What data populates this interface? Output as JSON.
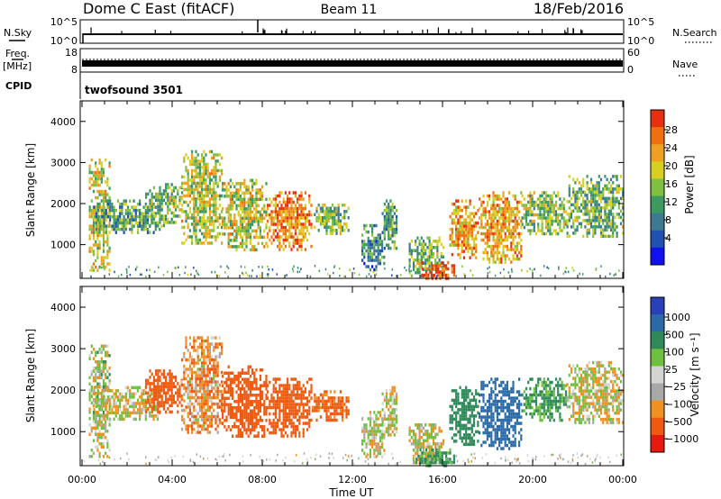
{
  "header": {
    "station": "Dome C East (fitACF)",
    "beam": "Beam 11",
    "date": "18/Feb/2016"
  },
  "noise_panel": {
    "left_label": "N.Sky",
    "left_ticks": [
      "10^5",
      "10^0"
    ],
    "right_label": "N.Search",
    "right_ticks": [
      "10^5",
      "10^0"
    ]
  },
  "freq_panel": {
    "left_label_1": "Freq.",
    "left_label_2": "[MHz]",
    "left_ticks": [
      "18",
      "8"
    ],
    "right_label": "Nave",
    "right_ticks": [
      "60",
      "0"
    ]
  },
  "cpid_panel": {
    "label": "CPID",
    "program": "twofsound 3501"
  },
  "colors": {
    "power": [
      "#1010f0",
      "#2050b0",
      "#3c7a90",
      "#3c9a60",
      "#80c040",
      "#d8d020",
      "#f0a020",
      "#f07010",
      "#e83010"
    ],
    "velocity": [
      "#e81a10",
      "#f05a10",
      "#f09020",
      "#a8a8a8",
      "#d4d4d0",
      "#70c040",
      "#2f8a5a",
      "#2a6aa8",
      "#2840b8"
    ]
  },
  "chart_data": [
    {
      "type": "heatmap",
      "name": "power",
      "ylabel": "Slant Range [km]",
      "yticks": [
        "1000",
        "2000",
        "3000",
        "4000"
      ],
      "ylim": [
        180,
        4500
      ],
      "xlim": [
        "00:00",
        "24:00"
      ],
      "colorbar": {
        "label": "Power [dB]",
        "ticks": [
          "4",
          "8",
          "12",
          "16",
          "20",
          "24",
          "28"
        ],
        "range": [
          0,
          30
        ]
      },
      "blobs": [
        {
          "t": [
            0.3,
            1.2
          ],
          "r": [
            400,
            3100
          ],
          "v": 18
        },
        {
          "t": [
            0.5,
            3.5
          ],
          "r": [
            1300,
            2100
          ],
          "v": 12
        },
        {
          "t": [
            2.8,
            4.4
          ],
          "r": [
            1500,
            2500
          ],
          "v": 15
        },
        {
          "t": [
            4.4,
            6.2
          ],
          "r": [
            1000,
            3300
          ],
          "v": 17
        },
        {
          "t": [
            6.2,
            8.2
          ],
          "r": [
            900,
            2600
          ],
          "v": 18
        },
        {
          "t": [
            8.2,
            10.2
          ],
          "r": [
            900,
            2300
          ],
          "v": 24
        },
        {
          "t": [
            10.2,
            11.8
          ],
          "r": [
            1300,
            2000
          ],
          "v": 14
        },
        {
          "t": [
            12.4,
            13.4
          ],
          "r": [
            400,
            1500
          ],
          "v": 10
        },
        {
          "t": [
            13.3,
            14.0
          ],
          "r": [
            900,
            2100
          ],
          "v": 12
        },
        {
          "t": [
            14.5,
            16.0
          ],
          "r": [
            250,
            1200
          ],
          "v": 14
        },
        {
          "t": [
            14.8,
            16.5
          ],
          "r": [
            200,
            600
          ],
          "v": 28
        },
        {
          "t": [
            16.3,
            17.6
          ],
          "r": [
            700,
            2100
          ],
          "v": 23
        },
        {
          "t": [
            17.6,
            19.5
          ],
          "r": [
            600,
            2300
          ],
          "v": 22
        },
        {
          "t": [
            19.5,
            21.5
          ],
          "r": [
            1300,
            2300
          ],
          "v": 15
        },
        {
          "t": [
            21.5,
            24.0
          ],
          "r": [
            1200,
            2700
          ],
          "v": 14
        }
      ]
    },
    {
      "type": "heatmap",
      "name": "velocity",
      "ylabel": "Slant Range [km]",
      "yticks": [
        "1000",
        "2000",
        "3000",
        "4000"
      ],
      "ylim": [
        180,
        4500
      ],
      "xlim": [
        "00:00",
        "24:00"
      ],
      "xticks": [
        "00:00",
        "04:00",
        "08:00",
        "12:00",
        "16:00",
        "20:00",
        "00:00"
      ],
      "xlabel": "Time UT",
      "colorbar": {
        "label": "Velocity [m s⁻¹]",
        "ticks": [
          "1000",
          "500",
          "100",
          "25",
          "−25",
          "−100",
          "−500",
          "−1000"
        ],
        "range": [
          -1200,
          1200
        ]
      },
      "blobs": [
        {
          "t": [
            0.3,
            1.2
          ],
          "r": [
            400,
            3100
          ],
          "v": 20
        },
        {
          "t": [
            0.5,
            3.5
          ],
          "r": [
            1300,
            2100
          ],
          "v": 0
        },
        {
          "t": [
            2.8,
            4.4
          ],
          "r": [
            1500,
            2500
          ],
          "v": -200
        },
        {
          "t": [
            4.4,
            6.2
          ],
          "r": [
            1000,
            3300
          ],
          "v": -60
        },
        {
          "t": [
            6.2,
            8.2
          ],
          "r": [
            900,
            2600
          ],
          "v": -250
        },
        {
          "t": [
            8.2,
            10.2
          ],
          "r": [
            900,
            2300
          ],
          "v": -300
        },
        {
          "t": [
            10.2,
            11.8
          ],
          "r": [
            1300,
            2000
          ],
          "v": -150
        },
        {
          "t": [
            12.4,
            13.4
          ],
          "r": [
            400,
            1500
          ],
          "v": 10
        },
        {
          "t": [
            13.3,
            14.0
          ],
          "r": [
            900,
            2100
          ],
          "v": 0
        },
        {
          "t": [
            14.5,
            16.0
          ],
          "r": [
            250,
            1200
          ],
          "v": 10
        },
        {
          "t": [
            14.8,
            16.5
          ],
          "r": [
            200,
            600
          ],
          "v": 150
        },
        {
          "t": [
            16.3,
            17.6
          ],
          "r": [
            700,
            2100
          ],
          "v": 200
        },
        {
          "t": [
            17.6,
            19.5
          ],
          "r": [
            600,
            2300
          ],
          "v": 600
        },
        {
          "t": [
            19.5,
            21.5
          ],
          "r": [
            1300,
            2300
          ],
          "v": 120
        },
        {
          "t": [
            21.5,
            24.0
          ],
          "r": [
            1200,
            2700
          ],
          "v": 5
        }
      ]
    }
  ]
}
